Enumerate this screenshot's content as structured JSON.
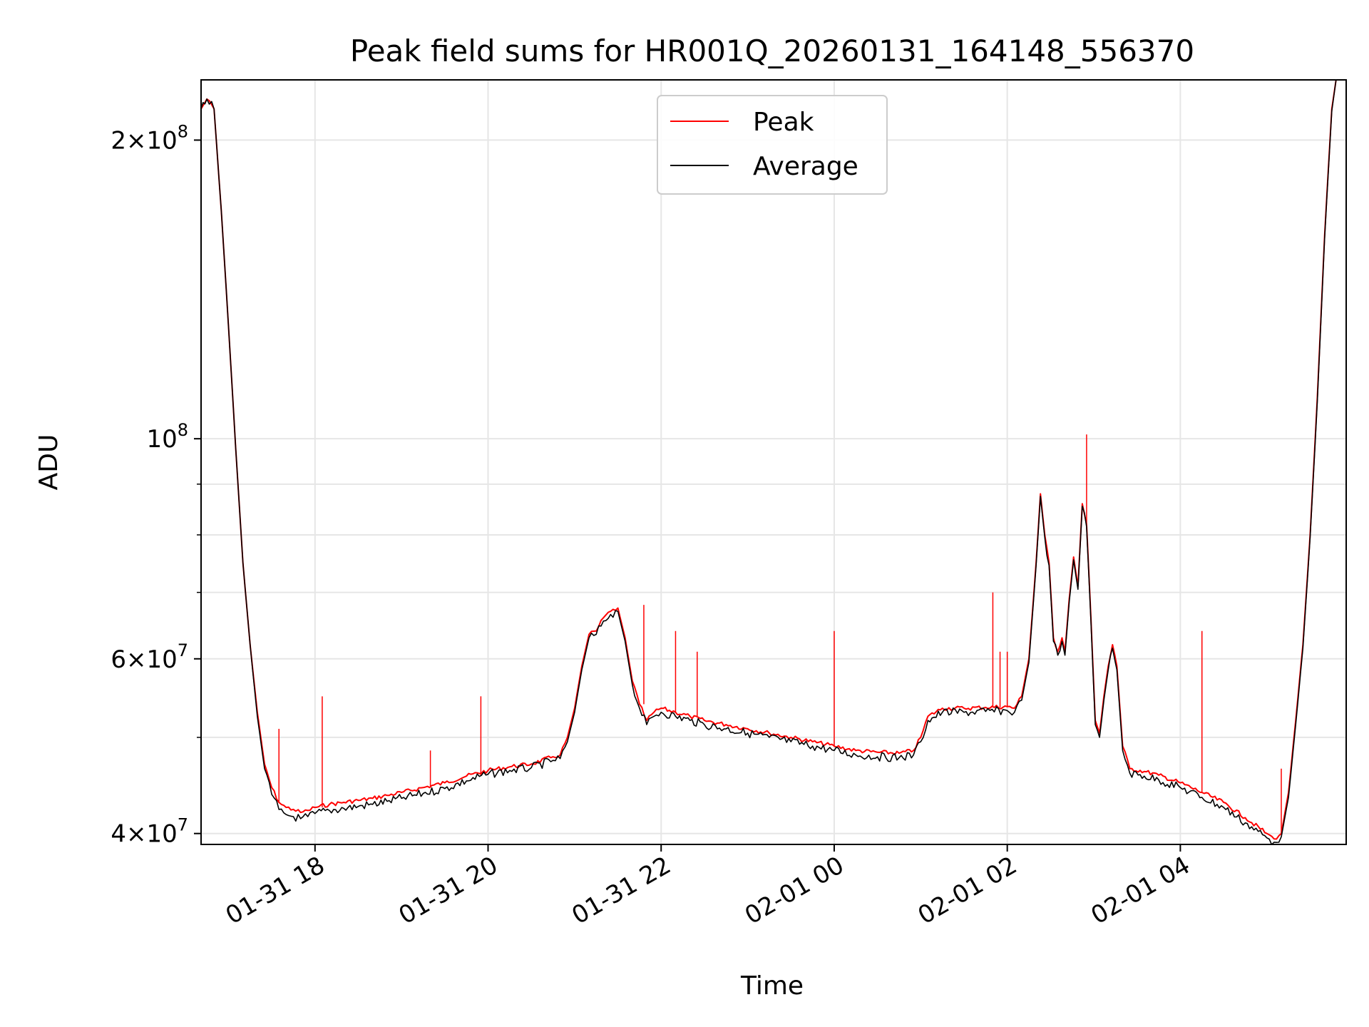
{
  "chart_data": {
    "type": "line",
    "title": "Peak field sums for HR001Q_20260131_164148_556370",
    "xlabel": "Time",
    "ylabel": "ADU",
    "x_ticks": [
      "01-31 18",
      "01-31 20",
      "01-31 22",
      "02-01 00",
      "02-01 02",
      "02-01 04"
    ],
    "y_ticks": [
      {
        "base": "4",
        "exp": "7",
        "value": 40000000
      },
      {
        "base": "6",
        "exp": "7",
        "value": 60000000
      },
      {
        "base": "",
        "exp": "8",
        "value": 100000000
      },
      {
        "base": "2",
        "exp": "8",
        "value": 200000000
      }
    ],
    "y_scale": "log",
    "grid": true,
    "legend_position": "top-center",
    "xlim": [
      "2026-01-31 16:41",
      "2026-02-01 05:55"
    ],
    "ylim": [
      39000000,
      230000000
    ],
    "series": [
      {
        "name": "Peak",
        "color": "#ff0000",
        "points": [
          [
            "2026-01-31 16:41",
            215000000
          ],
          [
            "2026-01-31 16:45",
            220000000
          ],
          [
            "2026-01-31 16:50",
            215000000
          ],
          [
            "2026-01-31 16:55",
            170000000
          ],
          [
            "2026-01-31 17:00",
            130000000
          ],
          [
            "2026-01-31 17:05",
            98000000
          ],
          [
            "2026-01-31 17:10",
            75000000
          ],
          [
            "2026-01-31 17:15",
            62000000
          ],
          [
            "2026-01-31 17:20",
            53000000
          ],
          [
            "2026-01-31 17:25",
            47000000
          ],
          [
            "2026-01-31 17:30",
            44500000
          ],
          [
            "2026-01-31 17:35",
            43000000
          ],
          [
            "2026-01-31 17:40",
            42500000
          ],
          [
            "2026-01-31 17:45",
            42300000
          ],
          [
            "2026-01-31 17:50",
            42000000
          ],
          [
            "2026-01-31 17:55",
            42200000
          ],
          [
            "2026-01-31 18:00",
            42500000
          ],
          [
            "2026-01-31 18:10",
            42800000
          ],
          [
            "2026-01-31 18:20",
            43000000
          ],
          [
            "2026-01-31 18:30",
            43200000
          ],
          [
            "2026-01-31 18:40",
            43400000
          ],
          [
            "2026-01-31 18:50",
            43700000
          ],
          [
            "2026-01-31 19:00",
            44000000
          ],
          [
            "2026-01-31 19:15",
            44500000
          ],
          [
            "2026-01-31 19:30",
            45000000
          ],
          [
            "2026-01-31 19:45",
            45700000
          ],
          [
            "2026-01-31 20:00",
            46300000
          ],
          [
            "2026-01-31 20:15",
            46700000
          ],
          [
            "2026-01-31 20:30",
            47000000
          ],
          [
            "2026-01-31 20:45",
            47800000
          ],
          [
            "2026-01-31 20:50",
            48000000
          ],
          [
            "2026-01-31 20:55",
            50000000
          ],
          [
            "2026-01-31 21:00",
            53500000
          ],
          [
            "2026-01-31 21:05",
            59000000
          ],
          [
            "2026-01-31 21:10",
            63500000
          ],
          [
            "2026-01-31 21:15",
            64000000
          ],
          [
            "2026-01-31 21:20",
            66000000
          ],
          [
            "2026-01-31 21:25",
            67000000
          ],
          [
            "2026-01-31 21:30",
            67500000
          ],
          [
            "2026-01-31 21:35",
            63000000
          ],
          [
            "2026-01-31 21:40",
            57000000
          ],
          [
            "2026-01-31 21:45",
            54000000
          ],
          [
            "2026-01-31 21:50",
            52000000
          ],
          [
            "2026-01-31 21:55",
            53000000
          ],
          [
            "2026-01-31 22:00",
            53500000
          ],
          [
            "2026-01-31 22:10",
            53000000
          ],
          [
            "2026-01-31 22:20",
            52500000
          ],
          [
            "2026-01-31 22:30",
            52000000
          ],
          [
            "2026-01-31 22:45",
            51500000
          ],
          [
            "2026-01-31 23:00",
            51000000
          ],
          [
            "2026-01-31 23:15",
            50500000
          ],
          [
            "2026-01-31 23:30",
            50000000
          ],
          [
            "2026-01-31 23:45",
            49500000
          ],
          [
            "2026-02-01 00:00",
            49000000
          ],
          [
            "2026-02-01 00:15",
            48500000
          ],
          [
            "2026-02-01 00:30",
            48300000
          ],
          [
            "2026-02-01 00:45",
            48200000
          ],
          [
            "2026-02-01 00:55",
            48500000
          ],
          [
            "2026-02-01 01:00",
            50000000
          ],
          [
            "2026-02-01 01:05",
            52500000
          ],
          [
            "2026-02-01 01:15",
            53500000
          ],
          [
            "2026-02-01 01:30",
            53500000
          ],
          [
            "2026-02-01 01:45",
            53600000
          ],
          [
            "2026-02-01 02:00",
            53700000
          ],
          [
            "2026-02-01 02:05",
            53500000
          ],
          [
            "2026-02-01 02:10",
            55000000
          ],
          [
            "2026-02-01 02:15",
            60000000
          ],
          [
            "2026-02-01 02:20",
            75000000
          ],
          [
            "2026-02-01 02:23",
            88000000
          ],
          [
            "2026-02-01 02:26",
            80000000
          ],
          [
            "2026-02-01 02:29",
            75000000
          ],
          [
            "2026-02-01 02:32",
            63000000
          ],
          [
            "2026-02-01 02:35",
            61000000
          ],
          [
            "2026-02-01 02:38",
            63000000
          ],
          [
            "2026-02-01 02:40",
            61000000
          ],
          [
            "2026-02-01 02:43",
            69000000
          ],
          [
            "2026-02-01 02:46",
            76000000
          ],
          [
            "2026-02-01 02:49",
            71000000
          ],
          [
            "2026-02-01 02:52",
            86000000
          ],
          [
            "2026-02-01 02:55",
            82000000
          ],
          [
            "2026-02-01 02:58",
            66000000
          ],
          [
            "2026-02-01 03:01",
            52000000
          ],
          [
            "2026-02-01 03:04",
            50500000
          ],
          [
            "2026-02-01 03:07",
            55000000
          ],
          [
            "2026-02-01 03:10",
            59000000
          ],
          [
            "2026-02-01 03:13",
            62000000
          ],
          [
            "2026-02-01 03:16",
            59000000
          ],
          [
            "2026-02-01 03:20",
            49000000
          ],
          [
            "2026-02-01 03:25",
            46500000
          ],
          [
            "2026-02-01 03:35",
            46200000
          ],
          [
            "2026-02-01 03:45",
            45800000
          ],
          [
            "2026-02-01 04:00",
            45000000
          ],
          [
            "2026-02-01 04:15",
            44000000
          ],
          [
            "2026-02-01 04:30",
            43000000
          ],
          [
            "2026-02-01 04:45",
            41500000
          ],
          [
            "2026-02-01 05:00",
            40000000
          ],
          [
            "2026-02-01 05:05",
            39500000
          ],
          [
            "2026-02-01 05:10",
            40000000
          ],
          [
            "2026-02-01 05:15",
            44000000
          ],
          [
            "2026-02-01 05:20",
            52000000
          ],
          [
            "2026-02-01 05:25",
            62000000
          ],
          [
            "2026-02-01 05:30",
            80000000
          ],
          [
            "2026-02-01 05:35",
            110000000
          ],
          [
            "2026-02-01 05:40",
            160000000
          ],
          [
            "2026-02-01 05:45",
            215000000
          ],
          [
            "2026-02-01 05:48",
            230000000
          ]
        ],
        "spikes": [
          [
            "2026-01-31 17:35",
            51000000
          ],
          [
            "2026-01-31 18:05",
            55000000
          ],
          [
            "2026-01-31 19:20",
            48500000
          ],
          [
            "2026-01-31 19:55",
            55000000
          ],
          [
            "2026-01-31 21:48",
            68000000
          ],
          [
            "2026-01-31 22:10",
            64000000
          ],
          [
            "2026-01-31 22:25",
            61000000
          ],
          [
            "2026-02-01 00:00",
            64000000
          ],
          [
            "2026-02-01 01:50",
            70000000
          ],
          [
            "2026-02-01 01:55",
            61000000
          ],
          [
            "2026-02-01 02:00",
            61000000
          ],
          [
            "2026-02-01 02:55",
            101000000
          ],
          [
            "2026-02-01 04:15",
            64000000
          ],
          [
            "2026-02-01 05:10",
            46500000
          ]
        ]
      },
      {
        "name": "Average",
        "color": "#000000",
        "points": [
          [
            "2026-01-31 16:41",
            215000000
          ],
          [
            "2026-01-31 16:45",
            220000000
          ],
          [
            "2026-01-31 16:50",
            215000000
          ],
          [
            "2026-01-31 16:55",
            170000000
          ],
          [
            "2026-01-31 17:00",
            130000000
          ],
          [
            "2026-01-31 17:05",
            98000000
          ],
          [
            "2026-01-31 17:10",
            75000000
          ],
          [
            "2026-01-31 17:15",
            62000000
          ],
          [
            "2026-01-31 17:20",
            52500000
          ],
          [
            "2026-01-31 17:25",
            46500000
          ],
          [
            "2026-01-31 17:30",
            43800000
          ],
          [
            "2026-01-31 17:35",
            42300000
          ],
          [
            "2026-01-31 17:40",
            41800000
          ],
          [
            "2026-01-31 17:45",
            41600000
          ],
          [
            "2026-01-31 17:50",
            41400000
          ],
          [
            "2026-01-31 17:55",
            41600000
          ],
          [
            "2026-01-31 18:00",
            41900000
          ],
          [
            "2026-01-31 18:10",
            42200000
          ],
          [
            "2026-01-31 18:20",
            42400000
          ],
          [
            "2026-01-31 18:30",
            42600000
          ],
          [
            "2026-01-31 18:40",
            42800000
          ],
          [
            "2026-01-31 18:50",
            43100000
          ],
          [
            "2026-01-31 19:00",
            43400000
          ],
          [
            "2026-01-31 19:15",
            43900000
          ],
          [
            "2026-01-31 19:30",
            44400000
          ],
          [
            "2026-01-31 19:45",
            45200000
          ],
          [
            "2026-01-31 20:00",
            45900000
          ],
          [
            "2026-01-31 20:15",
            46300000
          ],
          [
            "2026-01-31 20:30",
            46600000
          ],
          [
            "2026-01-31 20:45",
            47400000
          ],
          [
            "2026-01-31 20:50",
            47600000
          ],
          [
            "2026-01-31 20:55",
            49500000
          ],
          [
            "2026-01-31 21:00",
            53000000
          ],
          [
            "2026-01-31 21:05",
            58500000
          ],
          [
            "2026-01-31 21:10",
            63000000
          ],
          [
            "2026-01-31 21:15",
            63500000
          ],
          [
            "2026-01-31 21:20",
            65500000
          ],
          [
            "2026-01-31 21:25",
            66500000
          ],
          [
            "2026-01-31 21:30",
            67000000
          ],
          [
            "2026-01-31 21:35",
            62500000
          ],
          [
            "2026-01-31 21:40",
            56500000
          ],
          [
            "2026-01-31 21:45",
            53500000
          ],
          [
            "2026-01-31 21:50",
            51500000
          ],
          [
            "2026-01-31 21:55",
            52500000
          ],
          [
            "2026-01-31 22:00",
            53000000
          ],
          [
            "2026-01-31 22:10",
            52500000
          ],
          [
            "2026-01-31 22:20",
            52000000
          ],
          [
            "2026-01-31 22:30",
            51500000
          ],
          [
            "2026-01-31 22:45",
            51000000
          ],
          [
            "2026-01-31 23:00",
            50500000
          ],
          [
            "2026-01-31 23:15",
            50000000
          ],
          [
            "2026-01-31 23:30",
            49500000
          ],
          [
            "2026-01-31 23:45",
            49000000
          ],
          [
            "2026-02-01 00:00",
            48500000
          ],
          [
            "2026-02-01 00:15",
            48000000
          ],
          [
            "2026-02-01 00:30",
            47800000
          ],
          [
            "2026-02-01 00:45",
            47700000
          ],
          [
            "2026-02-01 00:55",
            48000000
          ],
          [
            "2026-02-01 01:00",
            49500000
          ],
          [
            "2026-02-01 01:05",
            52000000
          ],
          [
            "2026-02-01 01:15",
            53000000
          ],
          [
            "2026-02-01 01:30",
            53000000
          ],
          [
            "2026-02-01 01:45",
            53100000
          ],
          [
            "2026-02-01 02:00",
            53200000
          ],
          [
            "2026-02-01 02:05",
            53000000
          ],
          [
            "2026-02-01 02:10",
            54500000
          ],
          [
            "2026-02-01 02:15",
            59500000
          ],
          [
            "2026-02-01 02:20",
            74500000
          ],
          [
            "2026-02-01 02:23",
            87500000
          ],
          [
            "2026-02-01 02:26",
            79500000
          ],
          [
            "2026-02-01 02:29",
            74500000
          ],
          [
            "2026-02-01 02:32",
            62500000
          ],
          [
            "2026-02-01 02:35",
            60500000
          ],
          [
            "2026-02-01 02:38",
            62500000
          ],
          [
            "2026-02-01 02:40",
            60500000
          ],
          [
            "2026-02-01 02:43",
            68500000
          ],
          [
            "2026-02-01 02:46",
            75500000
          ],
          [
            "2026-02-01 02:49",
            70500000
          ],
          [
            "2026-02-01 02:52",
            85500000
          ],
          [
            "2026-02-01 02:55",
            81500000
          ],
          [
            "2026-02-01 02:58",
            65500000
          ],
          [
            "2026-02-01 03:01",
            51500000
          ],
          [
            "2026-02-01 03:04",
            50000000
          ],
          [
            "2026-02-01 03:07",
            54500000
          ],
          [
            "2026-02-01 03:10",
            58500000
          ],
          [
            "2026-02-01 03:13",
            61500000
          ],
          [
            "2026-02-01 03:16",
            58500000
          ],
          [
            "2026-02-01 03:20",
            48500000
          ],
          [
            "2026-02-01 03:25",
            46000000
          ],
          [
            "2026-02-01 03:35",
            45700000
          ],
          [
            "2026-02-01 03:45",
            45300000
          ],
          [
            "2026-02-01 04:00",
            44500000
          ],
          [
            "2026-02-01 04:15",
            43500000
          ],
          [
            "2026-02-01 04:30",
            42500000
          ],
          [
            "2026-02-01 04:45",
            41000000
          ],
          [
            "2026-02-01 05:00",
            39600000
          ],
          [
            "2026-02-01 05:05",
            39200000
          ],
          [
            "2026-02-01 05:10",
            39700000
          ],
          [
            "2026-02-01 05:15",
            43500000
          ],
          [
            "2026-02-01 05:20",
            51500000
          ],
          [
            "2026-02-01 05:25",
            61500000
          ],
          [
            "2026-02-01 05:30",
            79500000
          ],
          [
            "2026-02-01 05:35",
            109000000
          ],
          [
            "2026-02-01 05:40",
            159000000
          ],
          [
            "2026-02-01 05:45",
            214000000
          ],
          [
            "2026-02-01 05:48",
            230000000
          ]
        ]
      }
    ]
  }
}
